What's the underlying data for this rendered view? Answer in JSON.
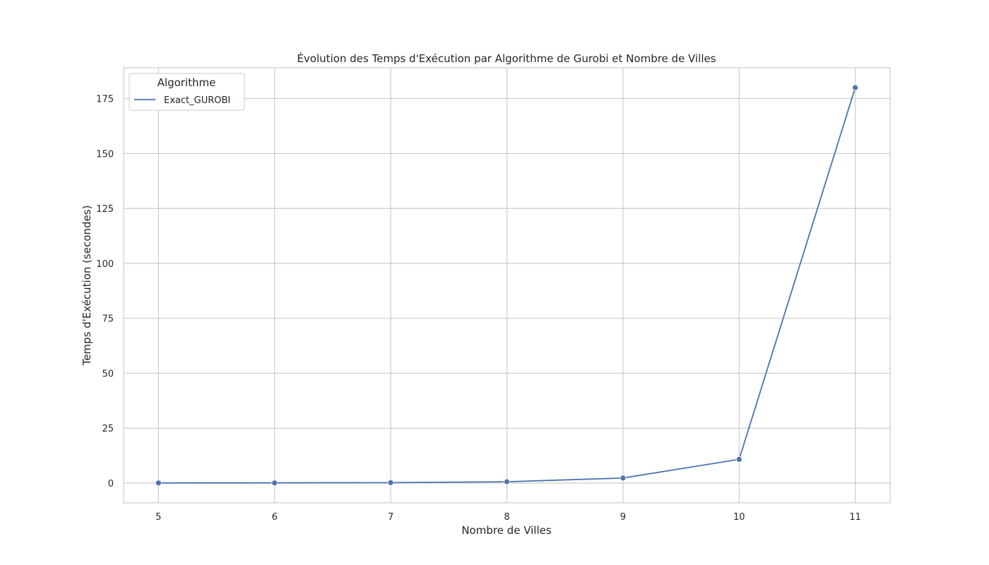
{
  "chart_data": {
    "type": "line",
    "title": "Évolution des Temps d'Exécution par Algorithme de Gurobi et Nombre de Villes",
    "xlabel": "Nombre de Villes",
    "ylabel": "Temps d'Exécution (secondes)",
    "x": [
      5,
      6,
      7,
      8,
      9,
      10,
      11
    ],
    "xlim": [
      4.7,
      11.3
    ],
    "ylim": [
      -9,
      189
    ],
    "xticks": [
      5,
      6,
      7,
      8,
      9,
      10,
      11
    ],
    "yticks": [
      0,
      25,
      50,
      75,
      100,
      125,
      150,
      175
    ],
    "grid": true,
    "legend": {
      "title": "Algorithme",
      "position": "top-left"
    },
    "series": [
      {
        "name": "Exact_GUROBI",
        "color": "#4c72b0",
        "values": [
          0.05,
          0.1,
          0.2,
          0.6,
          2.3,
          10.8,
          180
        ]
      }
    ]
  }
}
